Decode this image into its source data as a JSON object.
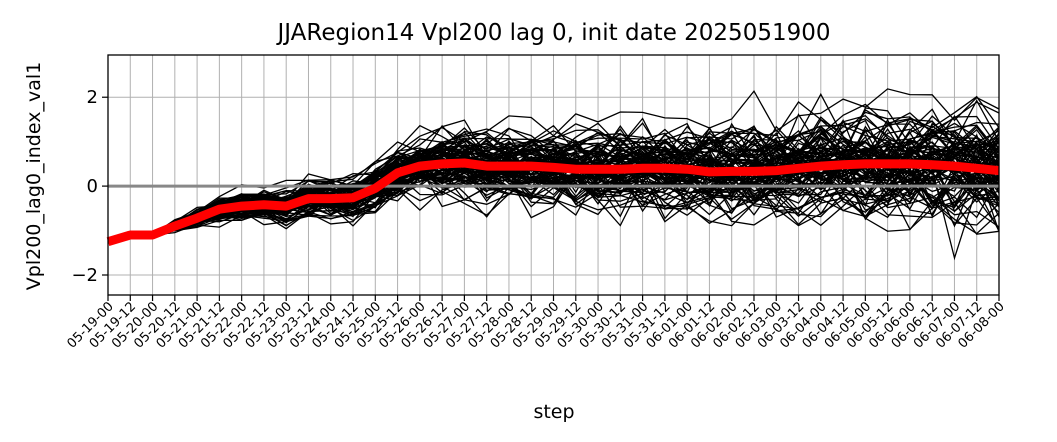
{
  "chart_data": {
    "type": "line",
    "title": "JJARegion14 Vpl200 lag 0, init date 2025051900",
    "xlabel": "step",
    "ylabel": "Vpl200_lag0_index_val1",
    "x": [
      "05-19-00",
      "05-19-12",
      "05-20-00",
      "05-20-12",
      "05-21-00",
      "05-21-12",
      "05-22-00",
      "05-22-12",
      "05-23-00",
      "05-23-12",
      "05-24-00",
      "05-24-12",
      "05-25-00",
      "05-25-12",
      "05-26-00",
      "05-26-12",
      "05-27-00",
      "05-27-12",
      "05-28-00",
      "05-28-12",
      "05-29-00",
      "05-29-12",
      "05-30-00",
      "05-30-12",
      "05-31-00",
      "05-31-12",
      "06-01-00",
      "06-01-12",
      "06-02-00",
      "06-02-12",
      "06-03-00",
      "06-03-12",
      "06-04-00",
      "06-04-12",
      "06-05-00",
      "06-05-12",
      "06-06-00",
      "06-06-12",
      "06-07-00",
      "06-07-12",
      "06-08-00"
    ],
    "ylim": [
      -2.45,
      2.95
    ],
    "yticks": [
      -2,
      0,
      2
    ],
    "grid": true,
    "reference_line": {
      "y": 0,
      "color": "#888888"
    },
    "ensemble_color": "#000000",
    "ensemble_members": 100,
    "ensemble_spread": [
      0.0,
      0.0,
      0.0,
      0.08,
      0.14,
      0.2,
      0.22,
      0.25,
      0.28,
      0.3,
      0.32,
      0.34,
      0.38,
      0.45,
      0.5,
      0.55,
      0.58,
      0.6,
      0.6,
      0.62,
      0.62,
      0.63,
      0.65,
      0.66,
      0.68,
      0.7,
      0.72,
      0.74,
      0.76,
      0.78,
      0.8,
      0.83,
      0.86,
      0.88,
      0.9,
      0.92,
      0.93,
      0.95,
      0.96,
      0.97,
      0.98
    ],
    "series": [
      {
        "color": "#ff0000",
        "values": [
          -1.25,
          -1.1,
          -1.1,
          -0.9,
          -0.72,
          -0.52,
          -0.45,
          -0.42,
          -0.45,
          -0.28,
          -0.28,
          -0.26,
          -0.05,
          0.3,
          0.45,
          0.5,
          0.52,
          0.45,
          0.45,
          0.45,
          0.42,
          0.38,
          0.38,
          0.38,
          0.4,
          0.4,
          0.38,
          0.32,
          0.33,
          0.33,
          0.35,
          0.4,
          0.45,
          0.48,
          0.5,
          0.5,
          0.5,
          0.48,
          0.45,
          0.4,
          0.35
        ]
      }
    ]
  }
}
